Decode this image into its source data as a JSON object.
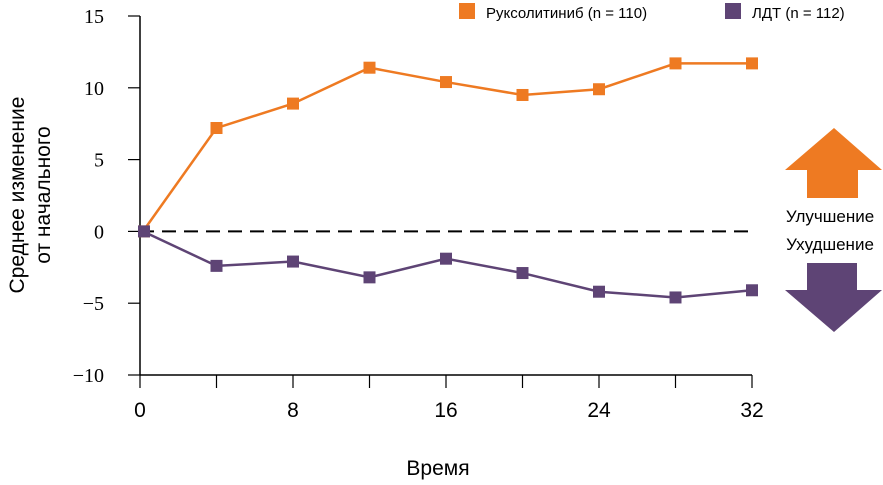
{
  "chart_data": {
    "type": "line",
    "xlabel": "Время",
    "ylabel_lines": [
      "Среднее изменение",
      "от начального"
    ],
    "xlim": [
      0,
      32
    ],
    "ylim": [
      -10,
      15
    ],
    "x_ticks": [
      0,
      4,
      8,
      12,
      16,
      20,
      24,
      28,
      32
    ],
    "x_tick_labels": [
      "0",
      "8",
      "16",
      "24",
      "32"
    ],
    "x_tick_label_values": [
      0,
      8,
      16,
      24,
      32
    ],
    "y_ticks": [
      15,
      10,
      5,
      0,
      -5,
      -10
    ],
    "y_tick_labels": [
      "15",
      "10",
      "5",
      "0",
      "−5",
      "−10"
    ],
    "grid": false,
    "reference_line": {
      "y": 0,
      "style": "dashed"
    },
    "legend_position": "top-right",
    "x": [
      0,
      4,
      8,
      12,
      16,
      20,
      24,
      28,
      32
    ],
    "series": [
      {
        "name": "Руксолитиниб (n = 110)",
        "color": "#EE7A22",
        "values": [
          0,
          7.2,
          8.9,
          11.4,
          10.4,
          9.5,
          9.9,
          11.7,
          11.7
        ]
      },
      {
        "name": "ЛДТ (n = 112)",
        "color": "#5E4475",
        "values": [
          0,
          -2.4,
          -2.1,
          -3.2,
          -1.9,
          -2.9,
          -4.2,
          -4.6,
          -4.1
        ]
      }
    ],
    "annotations": {
      "improvement": {
        "label": "Улучшение",
        "color": "#EE7A22",
        "icon": "arrow-up-icon"
      },
      "worsening": {
        "label": "Ухудшение",
        "color": "#5E4475",
        "icon": "arrow-down-icon"
      }
    }
  }
}
